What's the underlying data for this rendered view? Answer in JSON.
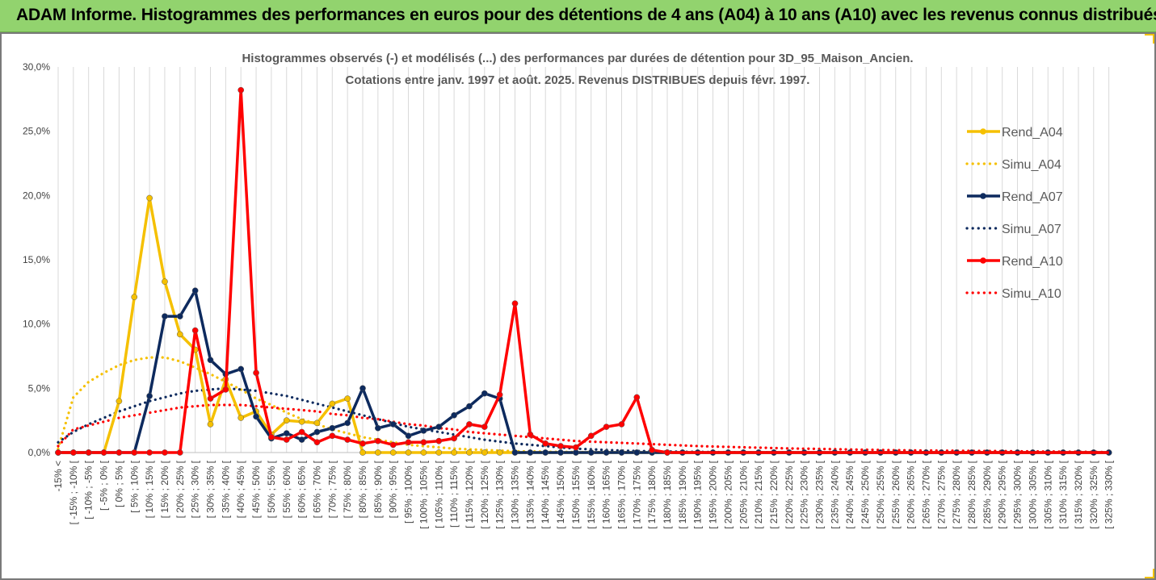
{
  "header": {
    "title": "ADAM Informe. Histogrammes des performances en euros pour des détentions de 4 ans (A04) à 10 ans (A10) avec les revenus connus distribués"
  },
  "chart_data": {
    "type": "line",
    "title": "Histogrammes observés (-) et modélisés (...) des performances par durées de détention pour 3D_95_Maison_Ancien.",
    "subtitle": "Cotations entre janv. 1997 et août. 2025. Revenus DISTRIBUES depuis févr. 1997.",
    "xlabel": "",
    "ylabel": "",
    "ylim": [
      0,
      30
    ],
    "yticks": [
      "0,0%",
      "5,0%",
      "10,0%",
      "15,0%",
      "20,0%",
      "25,0%",
      "30,0%"
    ],
    "grid": "vertical",
    "legend_position": "right",
    "categories": [
      "-15% <",
      "[ -15% ; -10% [",
      "[ -10% ; -5% [",
      "[ -5% ; 0% [",
      "[ 0% ; 5% [",
      "[ 5% ; 10% [",
      "[ 10% ; 15% [",
      "[ 15% ; 20% [",
      "[ 20% ; 25% [",
      "[ 25% ; 30% [",
      "[ 30% ; 35% [",
      "[ 35% ; 40% [",
      "[ 40% ; 45% [",
      "[ 45% ; 50% [",
      "[ 50% ; 55% [",
      "[ 55% ; 60% [",
      "[ 60% ; 65% [",
      "[ 65% ; 70% [",
      "[ 70% ; 75% [",
      "[ 75% ; 80% [",
      "[ 80% ; 85% [",
      "[ 85% ; 90% [",
      "[ 90% ; 95% [",
      "[ 95% ; 100% [",
      "[ 100% ; 105% [",
      "[ 105% ; 110% [",
      "[ 110% ; 115% [",
      "[ 115% ; 120% [",
      "[ 120% ; 125% [",
      "[ 125% ; 130% [",
      "[ 130% ; 135% [",
      "[ 135% ; 140% [",
      "[ 140% ; 145% [",
      "[ 145% ; 150% [",
      "[ 150% ; 155% [",
      "[ 155% ; 160% [",
      "[ 160% ; 165% [",
      "[ 165% ; 170% [",
      "[ 170% ; 175% [",
      "[ 175% ; 180% [",
      "[ 180% ; 185% [",
      "[ 185% ; 190% [",
      "[ 190% ; 195% [",
      "[ 195% ; 200% [",
      "[ 200% ; 205% [",
      "[ 205% ; 210% [",
      "[ 210% ; 215% [",
      "[ 215% ; 220% [",
      "[ 220% ; 225% [",
      "[ 225% ; 230% [",
      "[ 230% ; 235% [",
      "[ 235% ; 240% [",
      "[ 240% ; 245% [",
      "[ 245% ; 250% [",
      "[ 250% ; 255% [",
      "[ 255% ; 260% [",
      "[ 260% ; 265% [",
      "[ 265% ; 270% [",
      "[ 270% ; 275% [",
      "[ 275% ; 280% [",
      "[ 280% ; 285% [",
      "[ 285% ; 290% [",
      "[ 290% ; 295% [",
      "[ 295% ; 300% [",
      "[ 300% ; 305% [",
      "[ 305% ; 310% [",
      "[ 310% ; 315% [",
      "[ 315% ; 320% [",
      "[ 320% ; 325% [",
      "[ 325% ; 330% ["
    ],
    "series": [
      {
        "name": "Rend_A04",
        "style": "solid",
        "color": "#f5c000",
        "values": [
          0,
          0,
          0,
          0,
          4.0,
          12.1,
          19.8,
          13.3,
          9.2,
          8.0,
          2.2,
          5.7,
          2.7,
          3.2,
          1.4,
          2.5,
          2.4,
          2.3,
          3.8,
          4.2,
          0,
          0,
          0,
          0,
          0,
          0,
          0,
          0,
          0,
          0,
          0,
          0,
          0,
          0,
          0,
          0,
          0,
          0,
          0,
          0,
          0,
          0,
          0,
          0,
          0,
          0,
          0,
          0,
          0,
          0,
          0,
          0,
          0,
          0,
          0,
          0,
          0,
          0,
          0,
          0,
          0,
          0,
          0,
          0,
          0,
          0,
          0,
          0,
          0,
          0
        ]
      },
      {
        "name": "Simu_A04",
        "style": "dotted",
        "color": "#f5c000",
        "values": [
          0.3,
          4.3,
          5.5,
          6.2,
          6.8,
          7.2,
          7.4,
          7.4,
          7.1,
          6.6,
          6.1,
          5.5,
          4.9,
          4.2,
          3.7,
          3.1,
          2.6,
          2.2,
          1.8,
          1.5,
          1.2,
          1.0,
          0.8,
          0.6,
          0.5,
          0.4,
          0.3,
          0.25,
          0.2,
          0.15,
          0.1,
          0.08,
          0.06,
          0.05,
          0.04,
          0.03,
          0.02,
          0.02,
          0.01,
          0.01,
          0,
          0,
          0,
          0,
          0,
          0,
          0,
          0,
          0,
          0,
          0,
          0,
          0,
          0,
          0,
          0,
          0,
          0,
          0,
          0,
          0,
          0,
          0,
          0,
          0,
          0,
          0,
          0,
          0,
          0
        ]
      },
      {
        "name": "Rend_A07",
        "style": "solid",
        "color": "#0d2a5e",
        "values": [
          0,
          0,
          0,
          0,
          0,
          0,
          4.4,
          10.6,
          10.6,
          12.6,
          7.2,
          6.1,
          6.5,
          2.8,
          1.1,
          1.5,
          1.0,
          1.6,
          1.9,
          2.3,
          5.0,
          1.9,
          2.2,
          1.3,
          1.7,
          2.0,
          2.9,
          3.6,
          4.6,
          4.2,
          0,
          0,
          0,
          0,
          0,
          0,
          0,
          0,
          0,
          0,
          0,
          0,
          0,
          0,
          0,
          0,
          0,
          0,
          0,
          0,
          0,
          0,
          0,
          0,
          0,
          0,
          0,
          0,
          0,
          0,
          0,
          0,
          0,
          0,
          0,
          0,
          0,
          0,
          0,
          0
        ]
      },
      {
        "name": "Simu_A07",
        "style": "dotted",
        "color": "#0d2a5e",
        "values": [
          0.8,
          1.6,
          2.2,
          2.7,
          3.2,
          3.6,
          4.0,
          4.3,
          4.6,
          4.8,
          4.9,
          5.0,
          4.9,
          4.8,
          4.6,
          4.4,
          4.1,
          3.8,
          3.5,
          3.2,
          2.9,
          2.6,
          2.3,
          2.0,
          1.8,
          1.6,
          1.4,
          1.2,
          1.0,
          0.85,
          0.7,
          0.6,
          0.5,
          0.4,
          0.3,
          0.25,
          0.2,
          0.15,
          0.12,
          0.1,
          0.08,
          0.06,
          0.05,
          0.04,
          0.03,
          0.02,
          0.02,
          0.01,
          0.01,
          0,
          0,
          0,
          0,
          0,
          0,
          0,
          0,
          0,
          0,
          0,
          0,
          0,
          0,
          0,
          0,
          0,
          0,
          0,
          0,
          0
        ]
      },
      {
        "name": "Rend_A10",
        "style": "solid",
        "color": "#ff0000",
        "values": [
          0,
          0,
          0,
          0,
          0,
          0,
          0,
          0,
          0,
          9.5,
          4.2,
          4.9,
          28.2,
          6.2,
          1.2,
          1.0,
          1.6,
          0.8,
          1.3,
          1.0,
          0.7,
          0.9,
          0.6,
          0.8,
          0.8,
          0.9,
          1.1,
          2.2,
          2.0,
          4.5,
          11.6,
          1.4,
          0.7,
          0.5,
          0.4,
          1.3,
          2.0,
          2.2,
          4.3,
          0.2,
          0,
          0,
          0,
          0,
          0,
          0,
          0,
          0,
          0,
          0,
          0,
          0,
          0,
          0,
          0,
          0,
          0,
          0,
          0,
          0,
          0,
          0,
          0,
          0,
          0,
          0,
          0,
          0,
          0,
          0
        ]
      },
      {
        "name": "Simu_A10",
        "style": "dotted",
        "color": "#ff0000",
        "values": [
          0.5,
          1.8,
          2.1,
          2.4,
          2.7,
          2.9,
          3.1,
          3.3,
          3.5,
          3.6,
          3.7,
          3.7,
          3.7,
          3.6,
          3.5,
          3.4,
          3.3,
          3.2,
          3.0,
          2.9,
          2.7,
          2.6,
          2.4,
          2.2,
          2.1,
          1.9,
          1.8,
          1.6,
          1.5,
          1.4,
          1.3,
          1.2,
          1.1,
          1.0,
          0.9,
          0.85,
          0.8,
          0.75,
          0.7,
          0.65,
          0.6,
          0.55,
          0.5,
          0.47,
          0.44,
          0.41,
          0.38,
          0.35,
          0.32,
          0.3,
          0.28,
          0.26,
          0.24,
          0.22,
          0.2,
          0.18,
          0.17,
          0.16,
          0.15,
          0.14,
          0.13,
          0.12,
          0.11,
          0.1,
          0.09,
          0.08,
          0.07,
          0.06,
          0.05,
          0.04
        ]
      }
    ]
  }
}
